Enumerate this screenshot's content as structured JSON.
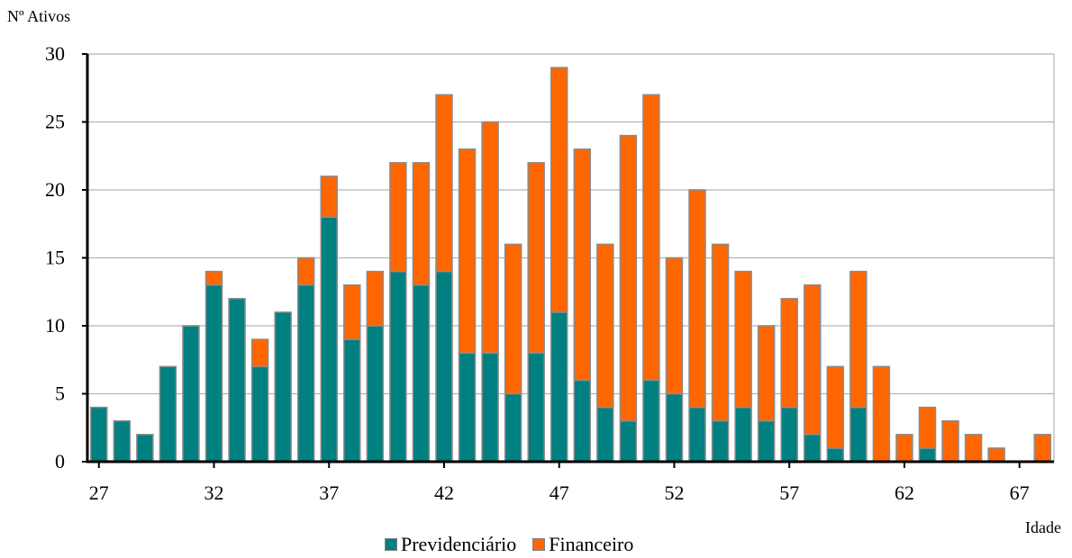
{
  "chart_data": {
    "type": "bar",
    "stacked": true,
    "ylabel": "Nº Ativos",
    "xlabel": "Idade",
    "ylim": [
      0,
      30
    ],
    "y_ticks": [
      0,
      5,
      10,
      15,
      20,
      25,
      30
    ],
    "x_tick_labels": [
      "27",
      "32",
      "37",
      "42",
      "47",
      "52",
      "57",
      "62",
      "67"
    ],
    "grid": true,
    "legend_position": "bottom",
    "categories": [
      27,
      28,
      29,
      30,
      31,
      32,
      33,
      34,
      35,
      36,
      37,
      38,
      39,
      40,
      41,
      42,
      43,
      44,
      45,
      46,
      47,
      48,
      49,
      50,
      51,
      52,
      53,
      54,
      55,
      56,
      57,
      58,
      59,
      60,
      61,
      62,
      63,
      64,
      65,
      66,
      67,
      68
    ],
    "series": [
      {
        "name": "Previdenciário",
        "color": "#008080",
        "values": [
          4,
          3,
          2,
          7,
          10,
          13,
          12,
          7,
          11,
          13,
          18,
          9,
          10,
          14,
          13,
          14,
          8,
          8,
          5,
          8,
          11,
          6,
          4,
          3,
          6,
          5,
          4,
          3,
          4,
          3,
          4,
          2,
          1,
          4,
          0,
          0,
          1,
          0,
          0,
          0,
          0,
          0
        ]
      },
      {
        "name": "Financeiro",
        "color": "#ff6600",
        "values": [
          0,
          0,
          0,
          0,
          0,
          1,
          0,
          2,
          0,
          2,
          3,
          4,
          4,
          8,
          9,
          13,
          15,
          17,
          11,
          14,
          18,
          17,
          12,
          21,
          21,
          10,
          16,
          13,
          10,
          7,
          8,
          11,
          6,
          10,
          7,
          2,
          3,
          3,
          2,
          1,
          0,
          2
        ]
      }
    ]
  }
}
